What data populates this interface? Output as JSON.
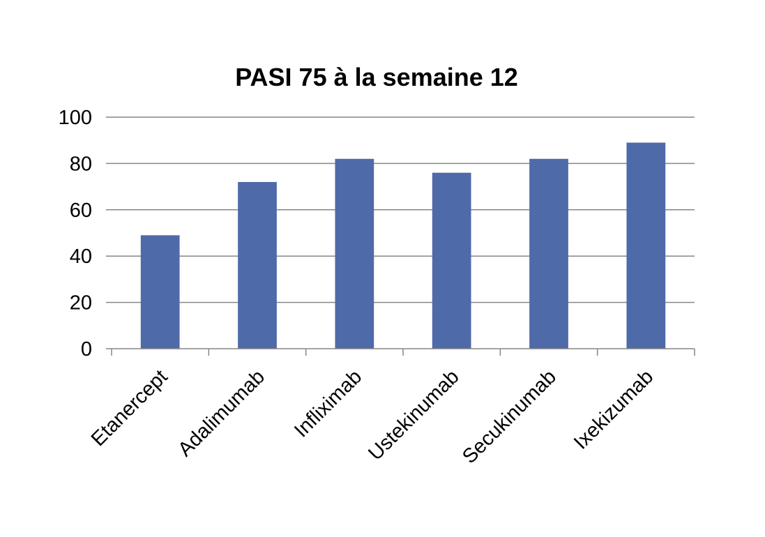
{
  "chart_data": {
    "type": "bar",
    "title": "PASI 75 à la semaine 12",
    "xlabel": "",
    "ylabel": "",
    "categories": [
      "Etanercept",
      "Adalimumab",
      "Infliximab",
      "Ustekinumab",
      "Secukinumab",
      "Ixekizumab"
    ],
    "values": [
      49,
      72,
      82,
      76,
      82,
      89
    ],
    "ylim": [
      0,
      100
    ],
    "yticks": [
      0,
      20,
      40,
      60,
      80,
      100
    ],
    "grid": true,
    "legend": "none",
    "bar_color": "#4F6AA8",
    "grid_color": "#868686"
  }
}
